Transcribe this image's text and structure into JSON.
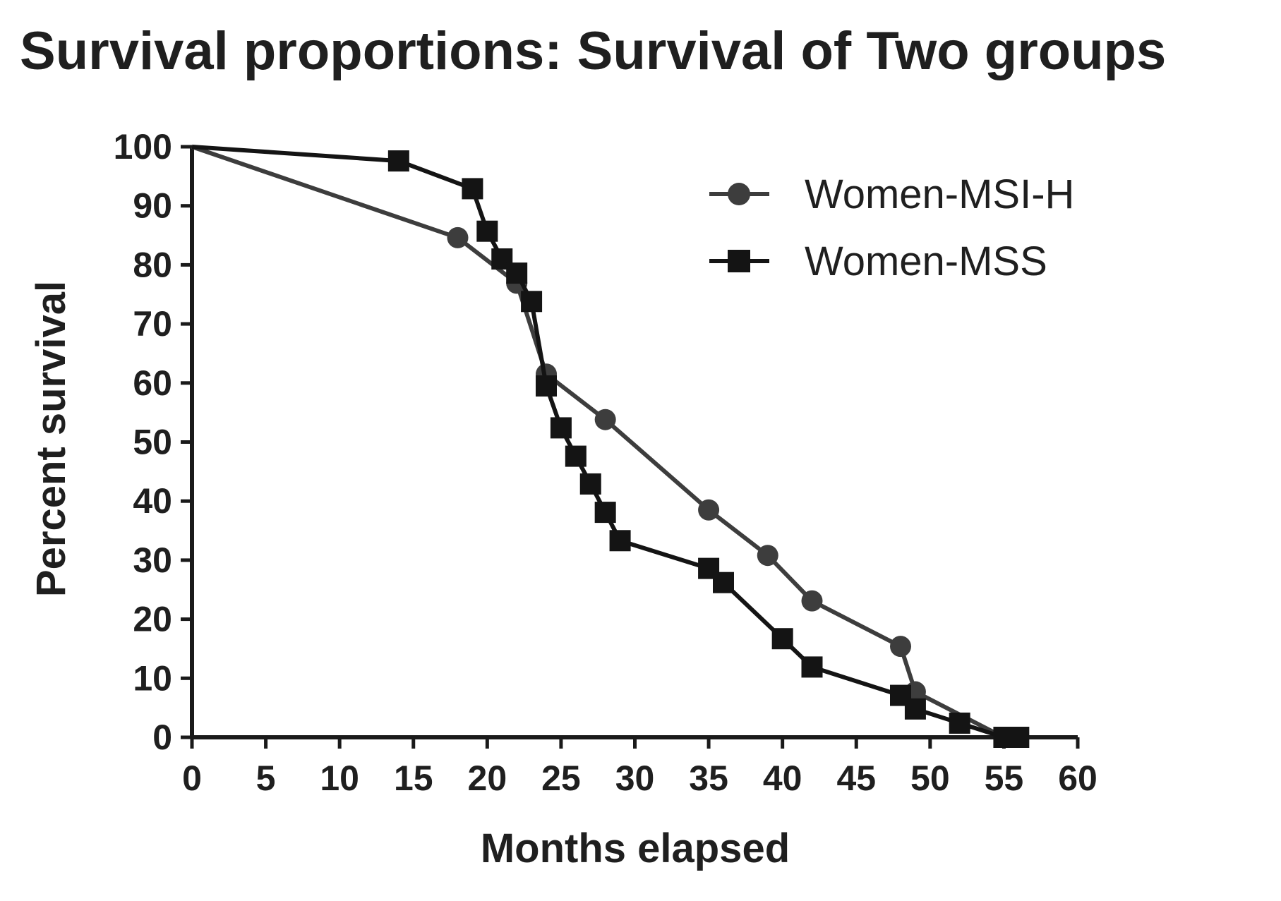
{
  "chart_data": {
    "type": "line",
    "step": false,
    "title": "Survival proportions: Survival of Two groups",
    "xlabel": "Months elapsed",
    "ylabel": "Percent survival",
    "xlim": [
      0,
      60
    ],
    "ylim": [
      0,
      100
    ],
    "xticks": [
      0,
      5,
      10,
      15,
      20,
      25,
      30,
      35,
      40,
      45,
      50,
      55,
      60
    ],
    "yticks": [
      0,
      10,
      20,
      30,
      40,
      50,
      60,
      70,
      80,
      90,
      100
    ],
    "grid": false,
    "legend_position": "top-right",
    "series": [
      {
        "name": "Women-MSI-H",
        "marker": "circle",
        "color": "#3d3d3d",
        "marker_from_index": 1,
        "x": [
          0,
          18,
          22,
          24,
          28,
          35,
          39,
          42,
          48,
          49,
          55,
          56
        ],
        "y": [
          100,
          84.6,
          76.9,
          61.5,
          53.8,
          38.5,
          30.8,
          23.1,
          15.4,
          7.7,
          0,
          0
        ]
      },
      {
        "name": "Women-MSS",
        "marker": "square",
        "color": "#141414",
        "marker_from_index": 1,
        "x": [
          0,
          14,
          19,
          20,
          21,
          22,
          23,
          24,
          25,
          26,
          27,
          28,
          29,
          35,
          36,
          40,
          42,
          48,
          49,
          52,
          55,
          56
        ],
        "y": [
          100,
          97.6,
          92.9,
          85.7,
          81,
          78.6,
          73.8,
          59.5,
          52.4,
          47.6,
          42.9,
          38.1,
          33.3,
          28.6,
          26.2,
          16.7,
          11.9,
          7.1,
          4.8,
          2.4,
          0,
          0
        ]
      }
    ]
  }
}
